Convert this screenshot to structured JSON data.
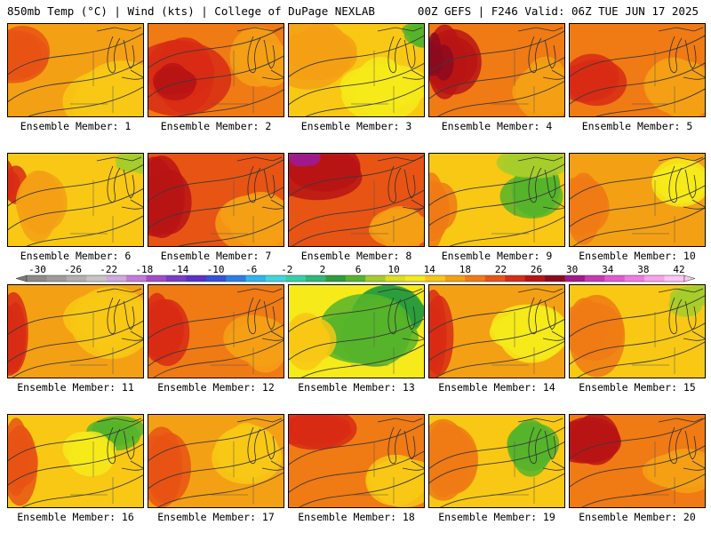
{
  "header": {
    "left": "850mb Temp (°C) | Wind (kts) | College of DuPage NEXLAB",
    "right": "00Z GEFS | F246 Valid: 06Z TUE JUN 17 2025"
  },
  "colorbar": {
    "labels": [
      "-30",
      "-26",
      "-22",
      "-18",
      "-14",
      "-10",
      "-6",
      "-2",
      "2",
      "6",
      "10",
      "14",
      "18",
      "22",
      "26",
      "30",
      "34",
      "38",
      "42"
    ],
    "colors": [
      "#8a8a8a",
      "#9c9c9c",
      "#b0b0b0",
      "#c6c6c6",
      "#cfa9e0",
      "#c37ad8",
      "#a04cc8",
      "#7a3cc8",
      "#5a32c8",
      "#3650d8",
      "#2a7ee6",
      "#2fb6f0",
      "#40d6e0",
      "#36d0a8",
      "#2eb878",
      "#2a9e3c",
      "#56b42a",
      "#a6cc2a",
      "#e0e01a",
      "#f6ea1a",
      "#f8c814",
      "#f4a014",
      "#f07a14",
      "#e85414",
      "#d82c14",
      "#b81414",
      "#8c0a1e",
      "#a01a8c",
      "#c43ab4",
      "#e05ad2",
      "#f07ae4",
      "#f8a2ee",
      "#fcc6f6"
    ]
  },
  "members": [
    {
      "label": "Ensemble Member: 1",
      "base": "#f4a014",
      "blobs": [
        [
          "#e85414",
          0.05,
          0.3,
          0.3,
          0.28
        ],
        [
          "#f8c814",
          0.8,
          0.8,
          0.35,
          0.35
        ]
      ]
    },
    {
      "label": "Ensemble Member: 2",
      "base": "#f07a14",
      "blobs": [
        [
          "#d82c14",
          0.25,
          0.55,
          0.35,
          0.4
        ],
        [
          "#b81414",
          0.2,
          0.6,
          0.15,
          0.18
        ],
        [
          "#f4a014",
          0.85,
          0.4,
          0.2,
          0.3
        ]
      ]
    },
    {
      "label": "Ensemble Member: 3",
      "base": "#f8c814",
      "blobs": [
        [
          "#f4a014",
          0.2,
          0.3,
          0.3,
          0.35
        ],
        [
          "#f6ea1a",
          0.65,
          0.7,
          0.3,
          0.3
        ],
        [
          "#56b42a",
          0.95,
          0.08,
          0.1,
          0.12
        ]
      ]
    },
    {
      "label": "Ensemble Member: 4",
      "base": "#f07a14",
      "blobs": [
        [
          "#b81414",
          0.12,
          0.4,
          0.2,
          0.4
        ],
        [
          "#8c0a1e",
          0.05,
          0.35,
          0.08,
          0.2
        ],
        [
          "#f4a014",
          0.85,
          0.7,
          0.25,
          0.35
        ]
      ]
    },
    {
      "label": "Ensemble Member: 5",
      "base": "#f07a14",
      "blobs": [
        [
          "#d82c14",
          0.15,
          0.6,
          0.2,
          0.25
        ],
        [
          "#f4a014",
          0.8,
          0.7,
          0.25,
          0.3
        ]
      ]
    },
    {
      "label": "Ensemble Member: 6",
      "base": "#f8c814",
      "blobs": [
        [
          "#d82c14",
          0.0,
          0.3,
          0.08,
          0.25
        ],
        [
          "#f4a014",
          0.25,
          0.55,
          0.22,
          0.35
        ],
        [
          "#a6cc2a",
          0.95,
          0.1,
          0.12,
          0.12
        ]
      ]
    },
    {
      "label": "Ensemble Member: 7",
      "base": "#e85414",
      "blobs": [
        [
          "#b81414",
          0.1,
          0.5,
          0.18,
          0.45
        ],
        [
          "#f4a014",
          0.8,
          0.7,
          0.25,
          0.3
        ]
      ]
    },
    {
      "label": "Ensemble Member: 8",
      "base": "#e85414",
      "blobs": [
        [
          "#b81414",
          0.25,
          0.2,
          0.3,
          0.25
        ],
        [
          "#a01a8c",
          0.1,
          0.05,
          0.1,
          0.1
        ],
        [
          "#f4a014",
          0.8,
          0.8,
          0.25,
          0.25
        ]
      ]
    },
    {
      "label": "Ensemble Member: 9",
      "base": "#f8c814",
      "blobs": [
        [
          "#f07a14",
          0.05,
          0.55,
          0.12,
          0.4
        ],
        [
          "#56b42a",
          0.8,
          0.4,
          0.22,
          0.3
        ],
        [
          "#a6cc2a",
          0.75,
          0.15,
          0.25,
          0.15
        ]
      ]
    },
    {
      "label": "Ensemble Member: 10",
      "base": "#f4a014",
      "blobs": [
        [
          "#f07a14",
          0.1,
          0.55,
          0.18,
          0.4
        ],
        [
          "#f6ea1a",
          0.8,
          0.3,
          0.2,
          0.25
        ]
      ]
    },
    {
      "label": "Ensemble Member: 11",
      "base": "#f4a014",
      "blobs": [
        [
          "#d82c14",
          0.05,
          0.55,
          0.1,
          0.45
        ],
        [
          "#f8c814",
          0.75,
          0.4,
          0.3,
          0.4
        ]
      ]
    },
    {
      "label": "Ensemble Member: 12",
      "base": "#f07a14",
      "blobs": [
        [
          "#d82c14",
          0.1,
          0.5,
          0.15,
          0.4
        ],
        [
          "#f4a014",
          0.8,
          0.6,
          0.25,
          0.35
        ]
      ]
    },
    {
      "label": "Ensemble Member: 13",
      "base": "#f6ea1a",
      "blobs": [
        [
          "#2a9e3c",
          0.72,
          0.3,
          0.25,
          0.3
        ],
        [
          "#56b42a",
          0.6,
          0.5,
          0.35,
          0.35
        ],
        [
          "#f8c814",
          0.15,
          0.6,
          0.18,
          0.35
        ]
      ]
    },
    {
      "label": "Ensemble Member: 14",
      "base": "#f4a014",
      "blobs": [
        [
          "#d82c14",
          0.05,
          0.55,
          0.1,
          0.45
        ],
        [
          "#f6ea1a",
          0.72,
          0.5,
          0.25,
          0.3
        ]
      ]
    },
    {
      "label": "Ensemble Member: 15",
      "base": "#f8c814",
      "blobs": [
        [
          "#f07a14",
          0.15,
          0.5,
          0.2,
          0.4
        ],
        [
          "#a6cc2a",
          0.9,
          0.15,
          0.15,
          0.12
        ]
      ]
    },
    {
      "label": "Ensemble Member: 16",
      "base": "#f8c814",
      "blobs": [
        [
          "#e85414",
          0.05,
          0.5,
          0.12,
          0.45
        ],
        [
          "#56b42a",
          0.75,
          0.18,
          0.2,
          0.18
        ],
        [
          "#f6ea1a",
          0.6,
          0.4,
          0.2,
          0.2
        ]
      ]
    },
    {
      "label": "Ensemble Member: 17",
      "base": "#f4a014",
      "blobs": [
        [
          "#e85414",
          0.1,
          0.55,
          0.15,
          0.4
        ],
        [
          "#f8c814",
          0.75,
          0.4,
          0.25,
          0.35
        ]
      ]
    },
    {
      "label": "Ensemble Member: 18",
      "base": "#f07a14",
      "blobs": [
        [
          "#d82c14",
          0.2,
          0.15,
          0.3,
          0.2
        ],
        [
          "#f8c814",
          0.8,
          0.7,
          0.25,
          0.3
        ]
      ]
    },
    {
      "label": "Ensemble Member: 19",
      "base": "#f8c814",
      "blobs": [
        [
          "#f07a14",
          0.15,
          0.45,
          0.18,
          0.4
        ],
        [
          "#56b42a",
          0.75,
          0.3,
          0.2,
          0.3
        ]
      ]
    },
    {
      "label": "Ensemble Member: 20",
      "base": "#f07a14",
      "blobs": [
        [
          "#b81414",
          0.15,
          0.25,
          0.25,
          0.25
        ],
        [
          "#f4a014",
          0.8,
          0.6,
          0.25,
          0.3
        ]
      ]
    }
  ]
}
